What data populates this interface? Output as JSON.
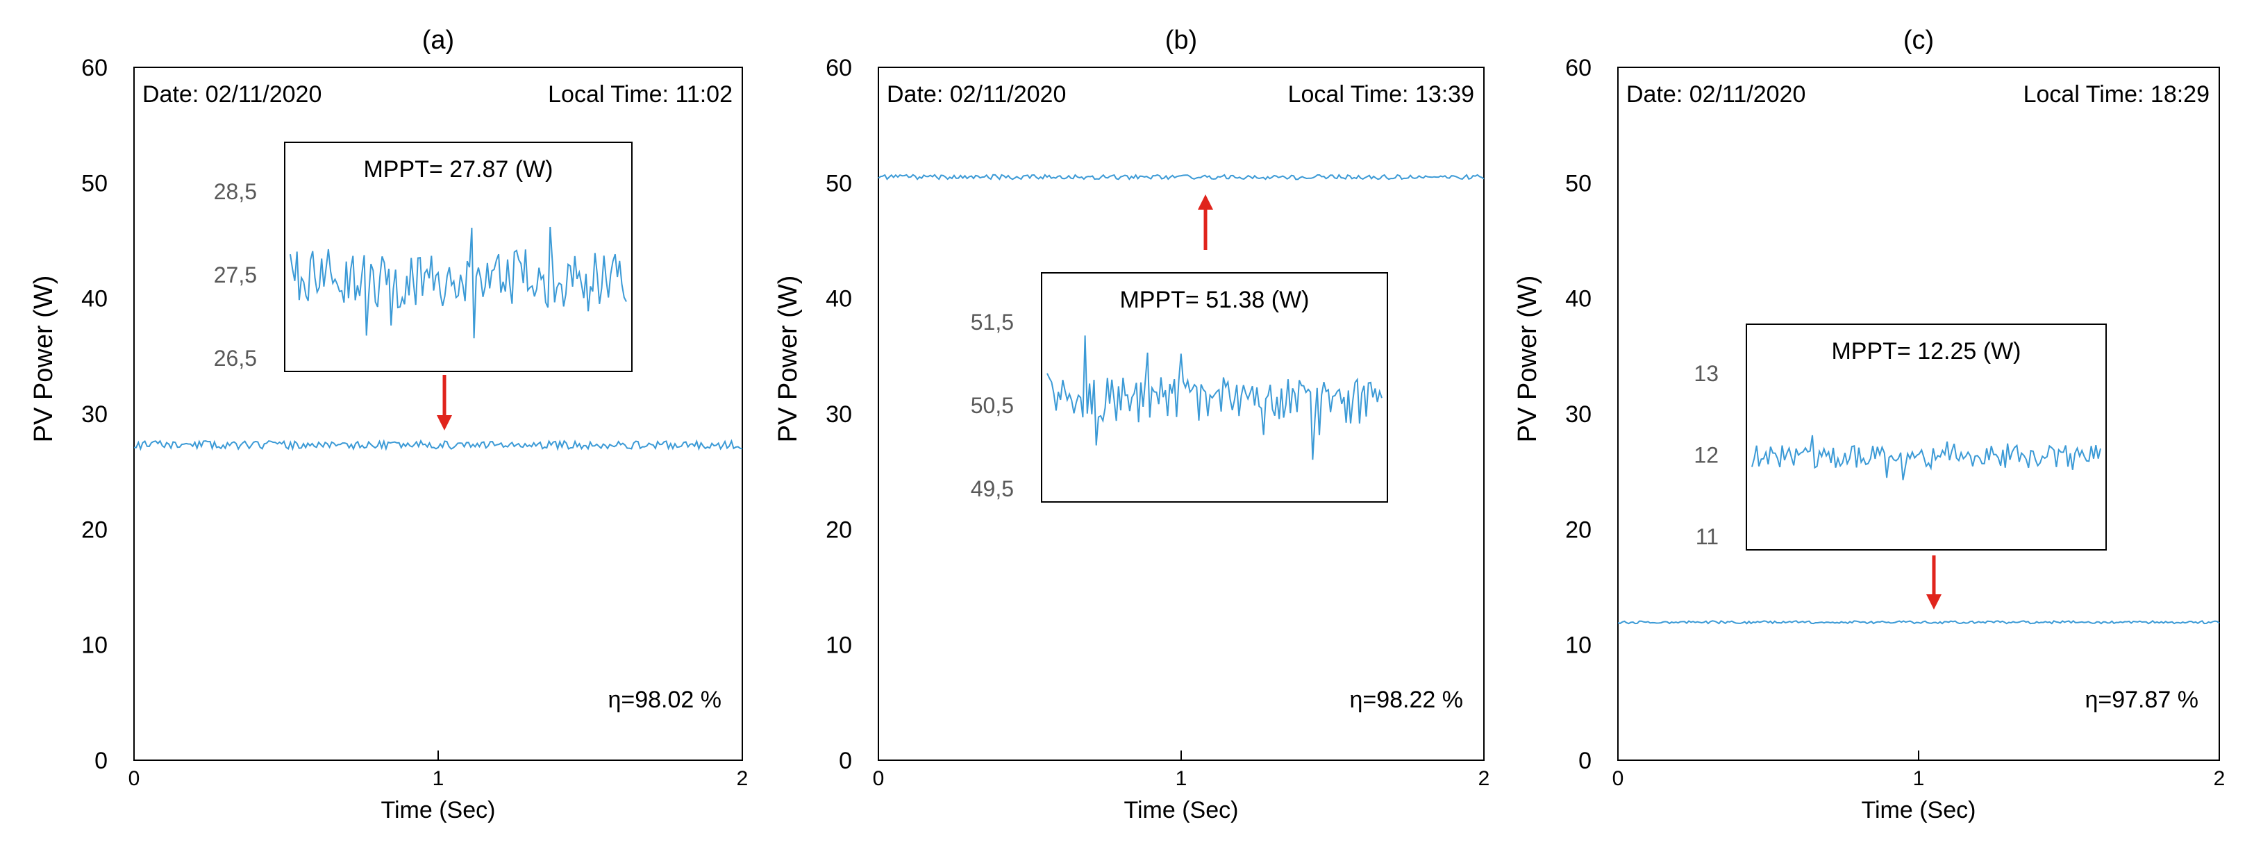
{
  "colors": {
    "series": "#3b9ad6",
    "arrow": "#e0241c",
    "frame": "#000000",
    "text": "#000000",
    "inset_tick": "#595959"
  },
  "chart_data": [
    {
      "id": "a",
      "type": "line",
      "panel_label": "(a)",
      "xlabel": "Time (Sec)",
      "ylabel": "PV Power (W)",
      "xlim": [
        0,
        2
      ],
      "ylim": [
        0,
        60
      ],
      "xticks": [
        "0",
        "1",
        "2"
      ],
      "yticks": [
        "0",
        "10",
        "20",
        "30",
        "40",
        "50",
        "60"
      ],
      "date_text": "Date: 02/11/2020",
      "time_text": "Local Time: 11:02",
      "efficiency_text": "η=98.02 %",
      "series": [
        {
          "name": "PV power",
          "mean": 27.3,
          "noise": 0.35,
          "seed": 11
        }
      ],
      "arrow_direction": "down",
      "inset": {
        "title": "MPPT= 27.87 (W)",
        "ylim": [
          26.5,
          28.5
        ],
        "yticks": [
          "28,5",
          "27,5",
          "26,5"
        ],
        "ytick_values": [
          28.5,
          27.5,
          26.5
        ],
        "mean": 27.45,
        "noise": 0.35,
        "seed": 21,
        "data_ylim": [
          26.5,
          28.5
        ]
      }
    },
    {
      "id": "b",
      "type": "line",
      "panel_label": "(b)",
      "xlabel": "Time (Sec)",
      "ylabel": "PV Power (W)",
      "xlim": [
        0,
        2
      ],
      "ylim": [
        0,
        60
      ],
      "xticks": [
        "0",
        "1",
        "2"
      ],
      "yticks": [
        "0",
        "10",
        "20",
        "30",
        "40",
        "50",
        "60"
      ],
      "date_text": "Date: 02/11/2020",
      "time_text": "Local Time: 13:39",
      "efficiency_text": "η=98.22 %",
      "series": [
        {
          "name": "PV power",
          "mean": 50.5,
          "noise": 0.2,
          "seed": 12
        }
      ],
      "arrow_direction": "up",
      "inset": {
        "title": "MPPT= 51.38 (W)",
        "ylim": [
          49.5,
          51.5
        ],
        "yticks": [
          "51,5",
          "50,5",
          "49,5"
        ],
        "ytick_values": [
          51.5,
          50.5,
          49.5
        ],
        "mean": 50.55,
        "noise": 0.28,
        "seed": 22,
        "data_ylim": [
          49.5,
          51.5
        ]
      }
    },
    {
      "id": "c",
      "type": "line",
      "panel_label": "(c)",
      "xlabel": "Time (Sec)",
      "ylabel": "PV Power (W)",
      "xlim": [
        0,
        2
      ],
      "ylim": [
        0,
        60
      ],
      "xticks": [
        "0",
        "1",
        "2"
      ],
      "yticks": [
        "0",
        "10",
        "20",
        "30",
        "40",
        "50",
        "60"
      ],
      "date_text": "Date: 02/11/2020",
      "time_text": "Local Time: 18:29",
      "efficiency_text": "η=97.87 %",
      "series": [
        {
          "name": "PV power",
          "mean": 11.95,
          "noise": 0.12,
          "seed": 13
        }
      ],
      "arrow_direction": "down",
      "inset": {
        "title": "MPPT= 12.25 (W)",
        "ylim": [
          11,
          13
        ],
        "yticks": [
          "13",
          "12",
          "11"
        ],
        "ytick_values": [
          13,
          12,
          11
        ],
        "mean": 11.97,
        "noise": 0.14,
        "seed": 23,
        "data_ylim": [
          11,
          13
        ]
      }
    }
  ]
}
